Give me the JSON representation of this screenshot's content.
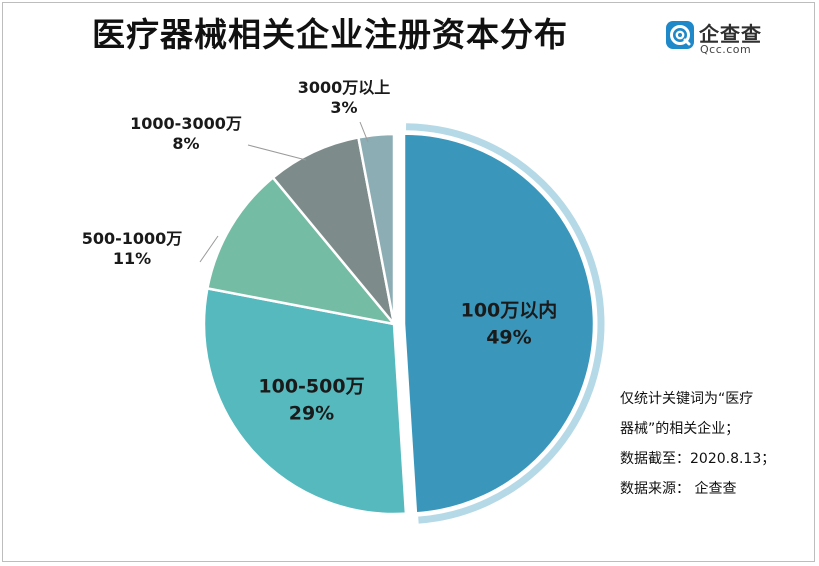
{
  "title": "医疗器械相关企业注册资本分布",
  "logo": {
    "name": "企查查",
    "domain": "Qcc.com",
    "icon": "qcc-logo-icon"
  },
  "colors": {
    "slice1": "#3a97bb",
    "slice2": "#55b9be",
    "slice3": "#74bca3",
    "slice4": "#7d8c8a",
    "slice5": "#8cadb4",
    "ring": "#b5d9e6",
    "leader": "#9a9a9a",
    "brand": "#1e88c9"
  },
  "chart_data": {
    "type": "pie",
    "title": "医疗器械相关企业注册资本分布",
    "slices": [
      {
        "label": "100万以内",
        "value": 49,
        "percent_label": "49%"
      },
      {
        "label": "100-500万",
        "value": 29,
        "percent_label": "29%"
      },
      {
        "label": "500-1000万",
        "value": 11,
        "percent_label": "11%"
      },
      {
        "label": "1000-3000万",
        "value": 8,
        "percent_label": "8%"
      },
      {
        "label": "3000万以上",
        "value": 3,
        "percent_label": "3%"
      }
    ],
    "highlighted_slice": "100万以内",
    "start": "12 o'clock",
    "direction": "clockwise",
    "legend": "none"
  },
  "notes": [
    "仅统计关键词为“医疗",
    "器械”的相关企业；",
    "数据截至：2020.8.13；",
    "数据来源： 企查查"
  ]
}
